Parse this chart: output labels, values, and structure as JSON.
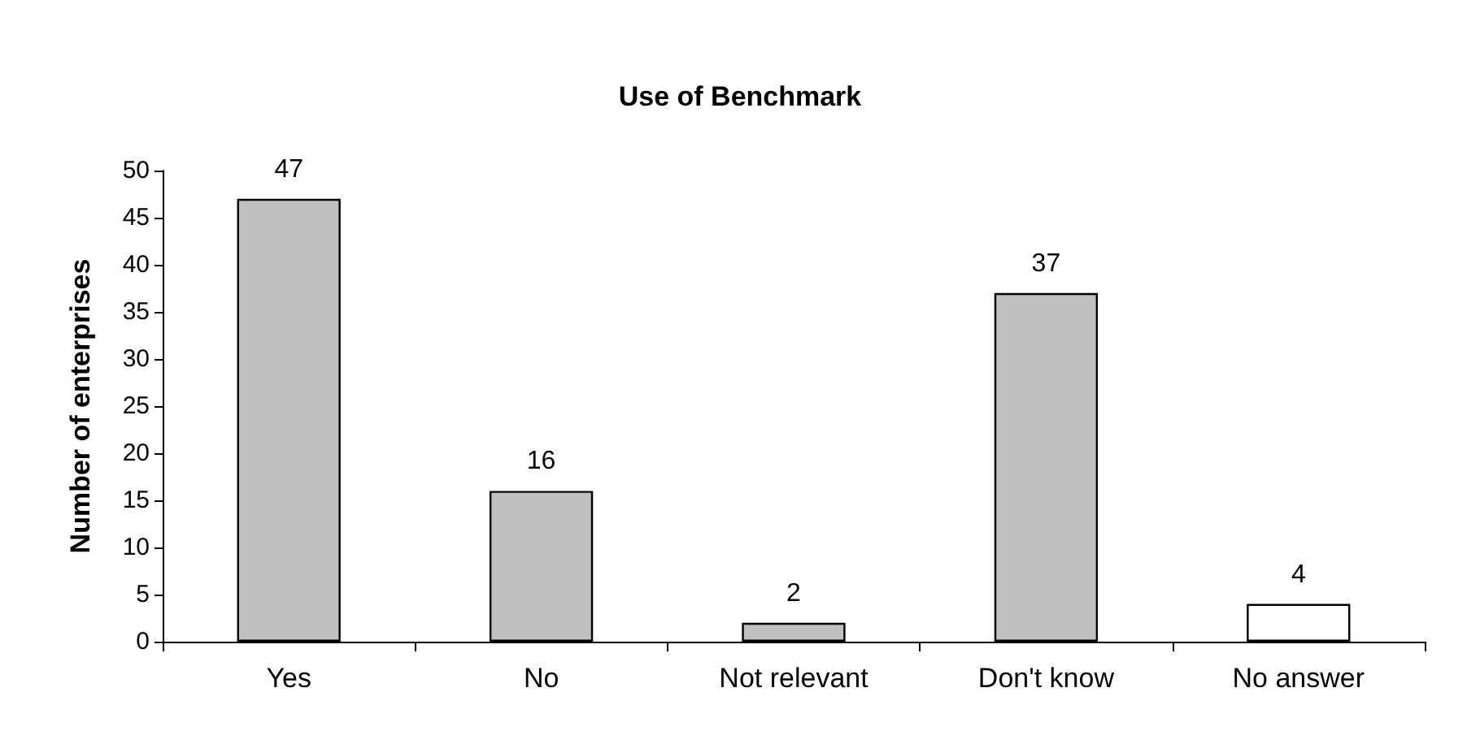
{
  "chart_data": {
    "type": "bar",
    "title": "Use of Benchmark",
    "ylabel": "Number of enterprises",
    "categories": [
      "Yes",
      "No",
      "Not relevant",
      "Don't know",
      "No answer"
    ],
    "values": [
      47,
      16,
      2,
      37,
      4
    ],
    "colors": [
      "#c0c0c0",
      "#c0c0c0",
      "#c0c0c0",
      "#c0c0c0",
      "#ffffff"
    ],
    "ylim": [
      0,
      50
    ],
    "yticks": [
      0,
      5,
      10,
      15,
      20,
      25,
      30,
      35,
      40,
      45,
      50
    ],
    "grid": false,
    "data_labels": true
  }
}
